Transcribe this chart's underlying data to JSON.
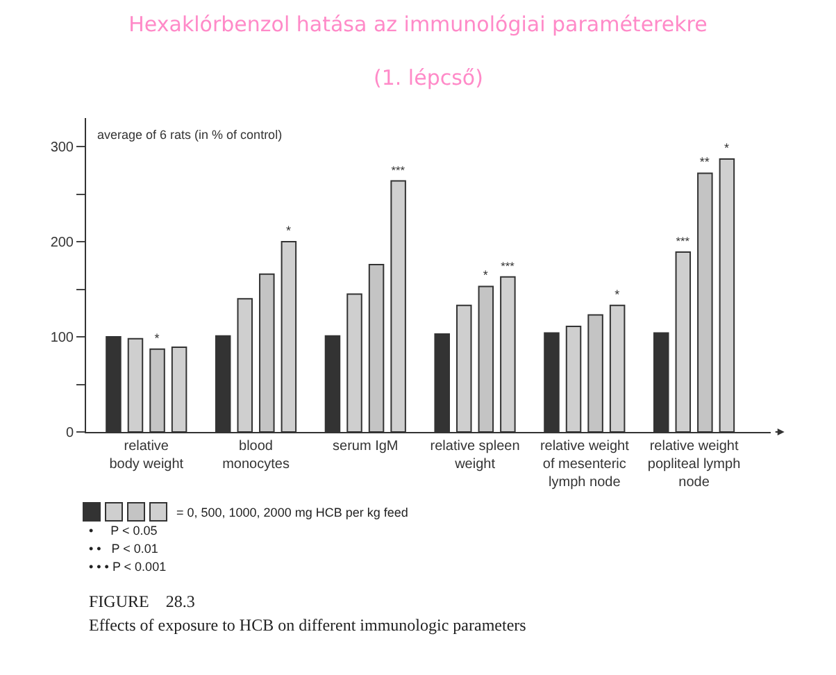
{
  "chart_data": {
    "type": "bar",
    "title": "Hexaklórbenzol hatása az immunológiai paraméterekre",
    "subtitle": "(1. lépcső)",
    "ylabel": "average of 6 rats (in % of control)",
    "categories": [
      "relative\nbody weight",
      "blood\nmonocytes",
      "serum IgM",
      "relative spleen\nweight",
      "relative weight\nof mesenteric\nlymph node",
      "relative weight\npopliteal lymph\nnode"
    ],
    "series": [
      {
        "color": "#333333",
        "values": [
          100,
          101,
          101,
          103,
          104,
          104
        ]
      },
      {
        "color": "#cfcfcf",
        "values": [
          98,
          140,
          145,
          133,
          111,
          189
        ],
        "value_labels": [
          null,
          null,
          null,
          null,
          null,
          "***"
        ]
      },
      {
        "color": "#c4c4c4",
        "values": [
          87,
          166,
          176,
          153,
          123,
          272
        ],
        "value_labels": [
          "*",
          null,
          null,
          "*",
          null,
          "**"
        ]
      },
      {
        "color": "#d0d0d0",
        "values": [
          89,
          200,
          264,
          163,
          133,
          287
        ],
        "value_labels": [
          null,
          "*",
          "***",
          "***",
          "*",
          "*"
        ]
      }
    ],
    "ylim": [
      0,
      330
    ],
    "yticks": [
      0,
      {
        "value": 50,
        "label": null
      },
      100,
      {
        "value": 150,
        "label": null
      },
      200,
      {
        "value": 250,
        "label": null
      },
      300
    ],
    "annotations": [
      "= 0, 500, 1000, 2000 mg HCB per kg feed",
      "•     P < 0.05",
      "• •   P < 0.01",
      "• • • P < 0.001",
      "FIGURE    28.3",
      "Effects of exposure to HCB on different immunologic parameters"
    ]
  }
}
